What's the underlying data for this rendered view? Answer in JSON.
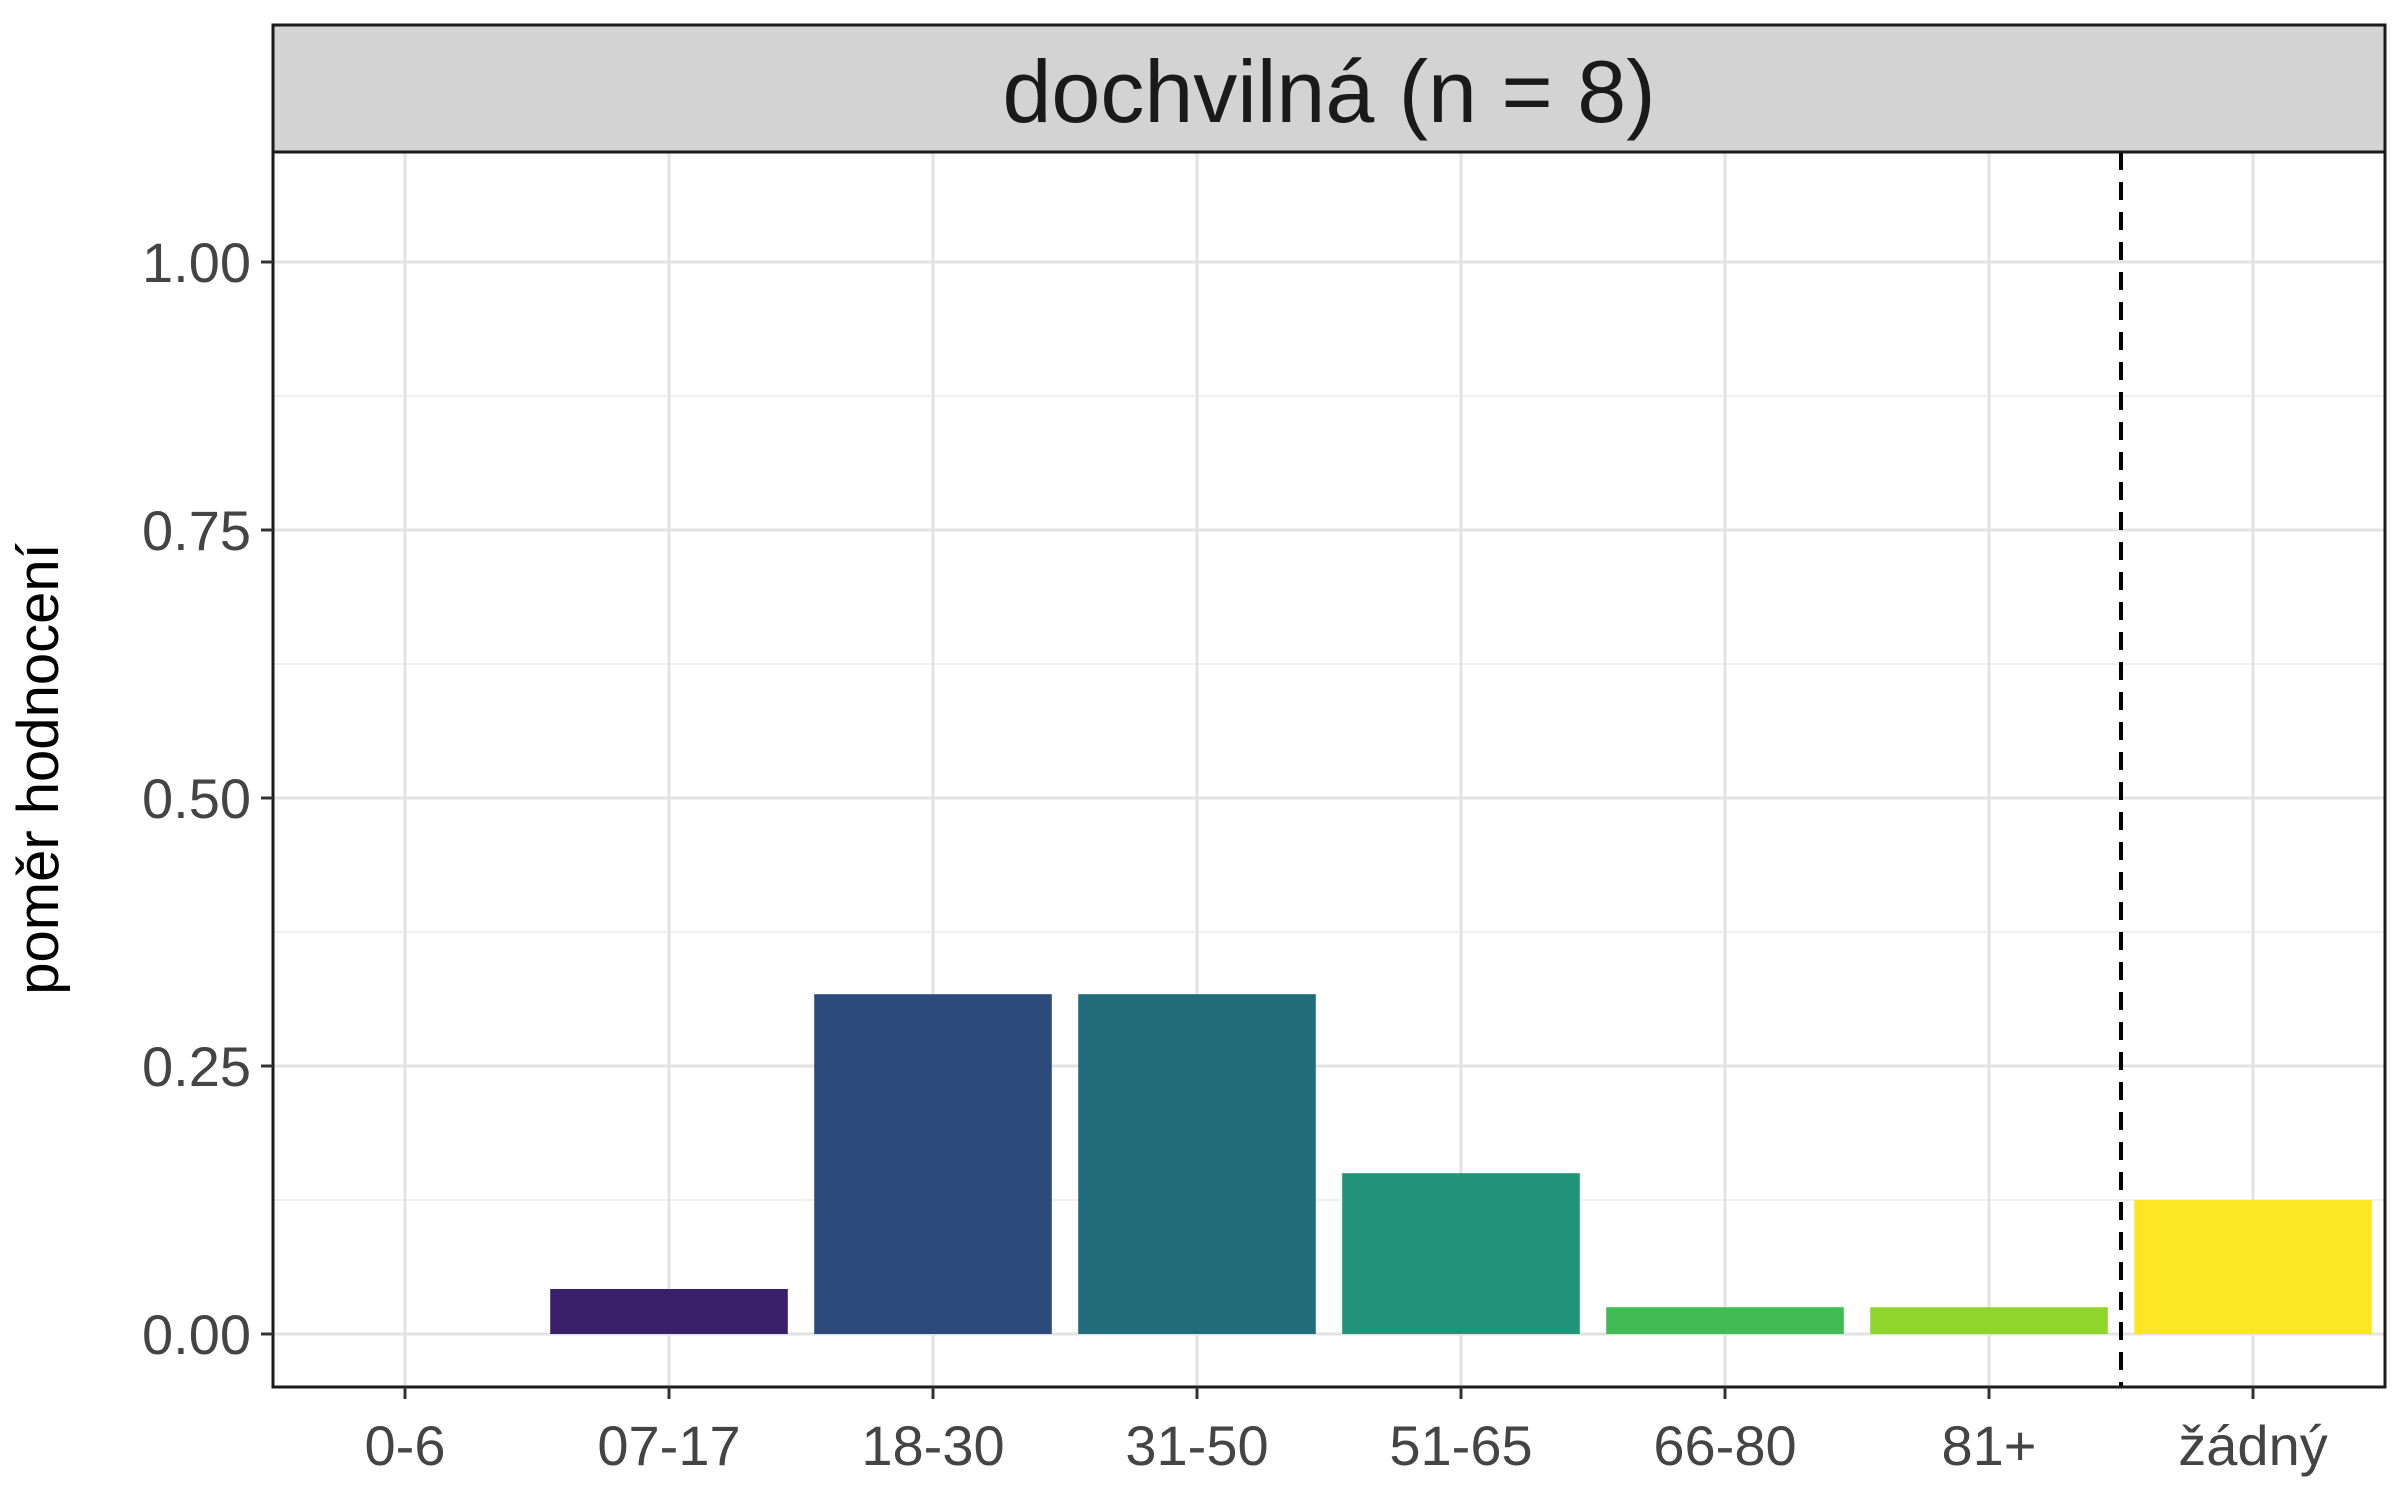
{
  "chart_data": {
    "type": "bar",
    "title": "",
    "facet_label": "dochvilná (n = 8)",
    "xlabel": "",
    "ylabel": "poměr hodnocení",
    "categories": [
      "0-6",
      "07-17",
      "18-30",
      "31-50",
      "51-65",
      "66-80",
      "81+",
      "žádný"
    ],
    "values": [
      0.0,
      0.042,
      0.317,
      0.317,
      0.15,
      0.025,
      0.025,
      0.125
    ],
    "colors": [
      "#440154",
      "#3a1f6b",
      "#2c4a7a",
      "#216e7a",
      "#21937a",
      "#41bc54",
      "#8fd52c",
      "#fde623"
    ],
    "ylim": [
      -0.05,
      1.1
    ],
    "yticks": [
      0.0,
      0.25,
      0.5,
      0.75,
      1.0
    ],
    "ytick_labels": [
      "0.00",
      "0.25",
      "0.50",
      "0.75",
      "1.00"
    ],
    "separator_after_category": "81+",
    "grid": true,
    "legend": "none"
  }
}
